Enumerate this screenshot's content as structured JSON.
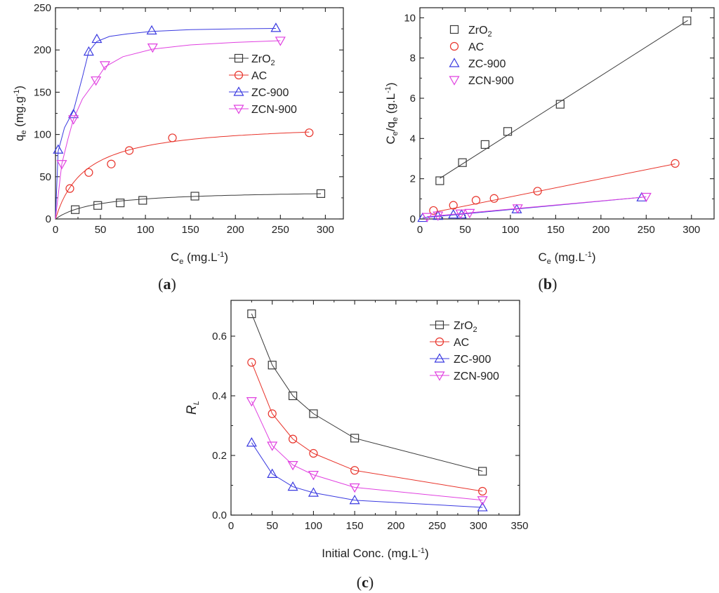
{
  "panel_labels": {
    "a": "(a)",
    "b": "(b)",
    "c": "(c)"
  },
  "series_styles": [
    {
      "name": "ZrO2",
      "marker": "square",
      "color": "#3a3a3a"
    },
    {
      "name": "AC",
      "marker": "circle",
      "color": "#e8332a"
    },
    {
      "name": "ZC-900",
      "marker": "triangle-up",
      "color": "#3a3ae0"
    },
    {
      "name": "ZCN-900",
      "marker": "triangle-down",
      "color": "#e040e0"
    }
  ],
  "legend_labels": [
    {
      "base": "ZrO",
      "sub": "2"
    },
    {
      "base": "AC",
      "sub": ""
    },
    {
      "base": "ZC-900",
      "sub": ""
    },
    {
      "base": "ZCN-900",
      "sub": ""
    }
  ],
  "chart_data": [
    {
      "id": "a",
      "type": "scatter",
      "title": "",
      "xlabel": {
        "base": "C",
        "sub": "e",
        "rest": " (mg.L",
        "sup": "-1",
        "end": ")"
      },
      "ylabel": {
        "base": "q",
        "sub": "e",
        "rest": " (mg.g",
        "sup": "-1",
        "end": ")"
      },
      "xlim": [
        0,
        320
      ],
      "ylim": [
        0,
        250
      ],
      "xticks": [
        0,
        50,
        100,
        150,
        200,
        250,
        300
      ],
      "yticks": [
        0,
        50,
        100,
        150,
        200,
        250
      ],
      "legend_position": "upper-right",
      "series": [
        {
          "name": "ZrO2",
          "x": [
            22,
            47,
            72,
            97,
            155,
            295
          ],
          "y": [
            11,
            16,
            19,
            22,
            27,
            30
          ],
          "curve": {
            "model": "langmuir",
            "qmax": 34.5,
            "K": 0.022
          }
        },
        {
          "name": "AC",
          "x": [
            16,
            37,
            62,
            82,
            130,
            282
          ],
          "y": [
            36,
            55,
            65,
            81,
            96,
            102
          ],
          "curve": {
            "model": "langmuir",
            "qmax": 115.0,
            "K": 0.03
          }
        },
        {
          "name": "ZC-900",
          "x": [
            3,
            20,
            37,
            46,
            107,
            245
          ],
          "y": [
            82,
            124,
            198,
            213,
            223,
            226
          ],
          "curve": {
            "model": "custom",
            "points": [
              [
                0,
                0
              ],
              [
                3,
                80
              ],
              [
                10,
                108
              ],
              [
                20,
                128
              ],
              [
                30,
                168
              ],
              [
                37,
                198
              ],
              [
                46,
                210
              ],
              [
                60,
                216
              ],
              [
                80,
                219
              ],
              [
                107,
                222
              ],
              [
                150,
                224
              ],
              [
                200,
                225
              ],
              [
                245,
                225.5
              ]
            ]
          }
        },
        {
          "name": "ZCN-900",
          "x": [
            7,
            20,
            45,
            55,
            108,
            250
          ],
          "y": [
            65,
            118,
            164,
            182,
            203,
            211
          ],
          "curve": {
            "model": "custom",
            "points": [
              [
                0,
                0
              ],
              [
                7,
                65
              ],
              [
                14,
                95
              ],
              [
                20,
                118
              ],
              [
                30,
                142
              ],
              [
                45,
                164
              ],
              [
                55,
                180
              ],
              [
                75,
                192
              ],
              [
                108,
                201
              ],
              [
                150,
                206
              ],
              [
                200,
                209
              ],
              [
                250,
                211
              ]
            ]
          }
        }
      ]
    },
    {
      "id": "b",
      "type": "scatter",
      "title": "",
      "xlabel": {
        "base": "C",
        "sub": "e",
        "rest": " (mg.L",
        "sup": "-1",
        "end": ")"
      },
      "ylabel": {
        "base": "C",
        "sub": "e",
        "rest": "/q",
        "sub2": "e",
        "rest2": " (g.L",
        "sup": "-1",
        "end": ")"
      },
      "xlim": [
        0,
        325
      ],
      "ylim": [
        0,
        10.5
      ],
      "xticks": [
        0,
        50,
        100,
        150,
        200,
        250,
        300
      ],
      "yticks": [
        0,
        2,
        4,
        6,
        8,
        10
      ],
      "legend_position": "upper-left",
      "series": [
        {
          "name": "ZrO2",
          "x": [
            22,
            47,
            72,
            97,
            155,
            295
          ],
          "y": [
            1.9,
            2.8,
            3.7,
            4.35,
            5.7,
            9.85
          ],
          "fit": {
            "x": [
              22,
              296
            ],
            "y": [
              2.02,
              9.87
            ]
          }
        },
        {
          "name": "AC",
          "x": [
            15,
            37,
            62,
            82,
            130,
            282
          ],
          "y": [
            0.42,
            0.68,
            0.93,
            1.02,
            1.38,
            2.76
          ],
          "fit": {
            "x": [
              15,
              282
            ],
            "y": [
              0.33,
              2.74
            ]
          }
        },
        {
          "name": "ZC-900",
          "x": [
            3,
            20,
            37,
            46,
            107,
            245
          ],
          "y": [
            0.05,
            0.15,
            0.22,
            0.22,
            0.48,
            1.07
          ],
          "fit": {
            "x": [
              3,
              246
            ],
            "y": [
              0.06,
              1.08
            ]
          }
        },
        {
          "name": "ZCN-900",
          "x": [
            8,
            20,
            45,
            55,
            108,
            250
          ],
          "y": [
            0.1,
            0.17,
            0.27,
            0.3,
            0.53,
            1.1
          ],
          "fit": {
            "x": [
              8,
              250
            ],
            "y": [
              0.12,
              1.1
            ]
          }
        }
      ]
    },
    {
      "id": "c",
      "type": "line",
      "title": "",
      "xlabel": {
        "base": "Initial Conc. (mg.L",
        "sup": "-1",
        "end": ")"
      },
      "ylabel": {
        "base": "R",
        "sub": "L",
        "italic": true
      },
      "xlim": [
        0,
        350
      ],
      "ylim": [
        0,
        0.72
      ],
      "xticks": [
        0,
        50,
        100,
        150,
        200,
        250,
        300,
        350
      ],
      "yticks": [
        0.0,
        0.2,
        0.4,
        0.6
      ],
      "legend_position": "upper-right",
      "series": [
        {
          "name": "ZrO2",
          "x": [
            25,
            50,
            75,
            100,
            150,
            305
          ],
          "y": [
            0.675,
            0.503,
            0.4,
            0.34,
            0.258,
            0.147
          ]
        },
        {
          "name": "AC",
          "x": [
            25,
            50,
            75,
            100,
            150,
            305
          ],
          "y": [
            0.512,
            0.34,
            0.255,
            0.207,
            0.15,
            0.08
          ]
        },
        {
          "name": "ZC-900",
          "x": [
            25,
            50,
            75,
            100,
            150,
            305
          ],
          "y": [
            0.243,
            0.138,
            0.095,
            0.075,
            0.05,
            0.026
          ]
        },
        {
          "name": "ZCN-900",
          "x": [
            25,
            50,
            75,
            100,
            150,
            305
          ],
          "y": [
            0.382,
            0.233,
            0.168,
            0.135,
            0.093,
            0.05
          ]
        }
      ]
    }
  ]
}
